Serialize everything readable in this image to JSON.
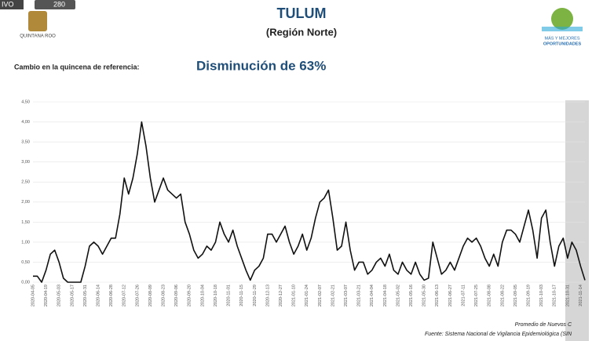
{
  "header": {
    "live": "IVO",
    "viewers": "280",
    "state_logo": "QUINTANA ROO",
    "right_logo_1": "MÁS Y MEJORES",
    "right_logo_2": "OPORTUNIDADES"
  },
  "chart_data": {
    "type": "line",
    "title": "TULUM",
    "subtitle": "(Región Norte)",
    "change_label": "Cambio en la quincena de referencia:",
    "change_value": "Disminución de 63%",
    "footnote": "Promedio de Nuevos C",
    "source": "Fuente: Sistema Nacional de Vigilancia Epidemiológica (SIN",
    "color": "#111111",
    "ylim": [
      0,
      4.5
    ],
    "yticks": [
      {
        "value": 0,
        "label": "0,00"
      },
      {
        "value": 0.5,
        "label": "0,50"
      },
      {
        "value": 1,
        "label": "1,00"
      },
      {
        "value": 1.5,
        "label": "1,50"
      },
      {
        "value": 2,
        "label": "2,00"
      },
      {
        "value": 2.5,
        "label": "2,50"
      },
      {
        "value": 3,
        "label": "3,00"
      },
      {
        "value": 3.5,
        "label": "3,50"
      },
      {
        "value": 4,
        "label": "4,00"
      },
      {
        "value": 4.5,
        "label": "4,50"
      }
    ],
    "categories": [
      "2020-04-05",
      null,
      null,
      "2020-04-19",
      null,
      null,
      "2020-05-03",
      null,
      null,
      "2020-05-17",
      null,
      null,
      "2020-05-31",
      null,
      null,
      "2020-06-14",
      null,
      null,
      "2020-06-28",
      null,
      null,
      "2020-07-12",
      null,
      null,
      "2020-07-26",
      null,
      null,
      "2020-08-09",
      null,
      null,
      "2020-08-23",
      null,
      null,
      "2020-09-06",
      null,
      null,
      "2020-09-20",
      null,
      null,
      "2020-10-04",
      null,
      null,
      "2020-10-18",
      null,
      null,
      "2020-11-01",
      null,
      null,
      "2020-11-15",
      null,
      null,
      "2020-11-29",
      null,
      null,
      "2020-12-13",
      null,
      null,
      "2020-12-27",
      null,
      null,
      "2021-01-10",
      null,
      null,
      "2021-01-24",
      null,
      null,
      "2021-02-07",
      null,
      null,
      "2021-02-21",
      null,
      null,
      "2021-03-07",
      null,
      null,
      "2021-03-21",
      null,
      null,
      "2021-04-04",
      null,
      null,
      "2021-04-18",
      null,
      null,
      "2021-05-02",
      null,
      null,
      "2021-05-16",
      null,
      null,
      "2021-05-30",
      null,
      null,
      "2021-06-13",
      null,
      null,
      "2021-06-27",
      null,
      null,
      "2021-07-11",
      null,
      null,
      "2021-07-25",
      null,
      null,
      "2021-08-08",
      null,
      null,
      "2021-08-22",
      null,
      null,
      "2021-09-05",
      null,
      null,
      "2021-09-19",
      null,
      null,
      "2021-10-03",
      null,
      null,
      "2021-10-17",
      null,
      null,
      "2021-10-31",
      null,
      null,
      "2021-11-14",
      null
    ],
    "values": [
      0.15,
      0.15,
      0,
      0.3,
      0.7,
      0.8,
      0.5,
      0.1,
      0,
      0,
      0,
      0,
      0.4,
      0.9,
      1.0,
      0.9,
      0.7,
      0.9,
      1.1,
      1.1,
      1.7,
      2.6,
      2.2,
      2.6,
      3.2,
      4.0,
      3.4,
      2.6,
      2.0,
      2.3,
      2.6,
      2.3,
      2.2,
      2.1,
      2.2,
      1.5,
      1.2,
      0.8,
      0.6,
      0.7,
      0.9,
      0.8,
      1.0,
      1.5,
      1.2,
      1.0,
      1.3,
      0.9,
      0.6,
      0.3,
      0.05,
      0.3,
      0.4,
      0.6,
      1.2,
      1.2,
      1.0,
      1.2,
      1.4,
      1.0,
      0.7,
      0.9,
      1.2,
      0.8,
      1.1,
      1.6,
      2.0,
      2.1,
      2.3,
      1.6,
      0.8,
      0.9,
      1.5,
      0.8,
      0.3,
      0.5,
      0.5,
      0.2,
      0.3,
      0.5,
      0.6,
      0.4,
      0.7,
      0.3,
      0.2,
      0.5,
      0.3,
      0.2,
      0.5,
      0.2,
      0.05,
      0.1,
      1.0,
      0.6,
      0.2,
      0.3,
      0.5,
      0.3,
      0.6,
      0.9,
      1.1,
      1.0,
      1.1,
      0.9,
      0.6,
      0.4,
      0.7,
      0.4,
      1.0,
      1.3,
      1.3,
      1.2,
      1.0,
      1.4,
      1.8,
      1.3,
      0.6,
      1.6,
      1.8,
      1.0,
      0.4,
      0.9,
      1.1,
      0.6,
      1.0,
      0.8,
      0.4,
      0.05
    ]
  }
}
